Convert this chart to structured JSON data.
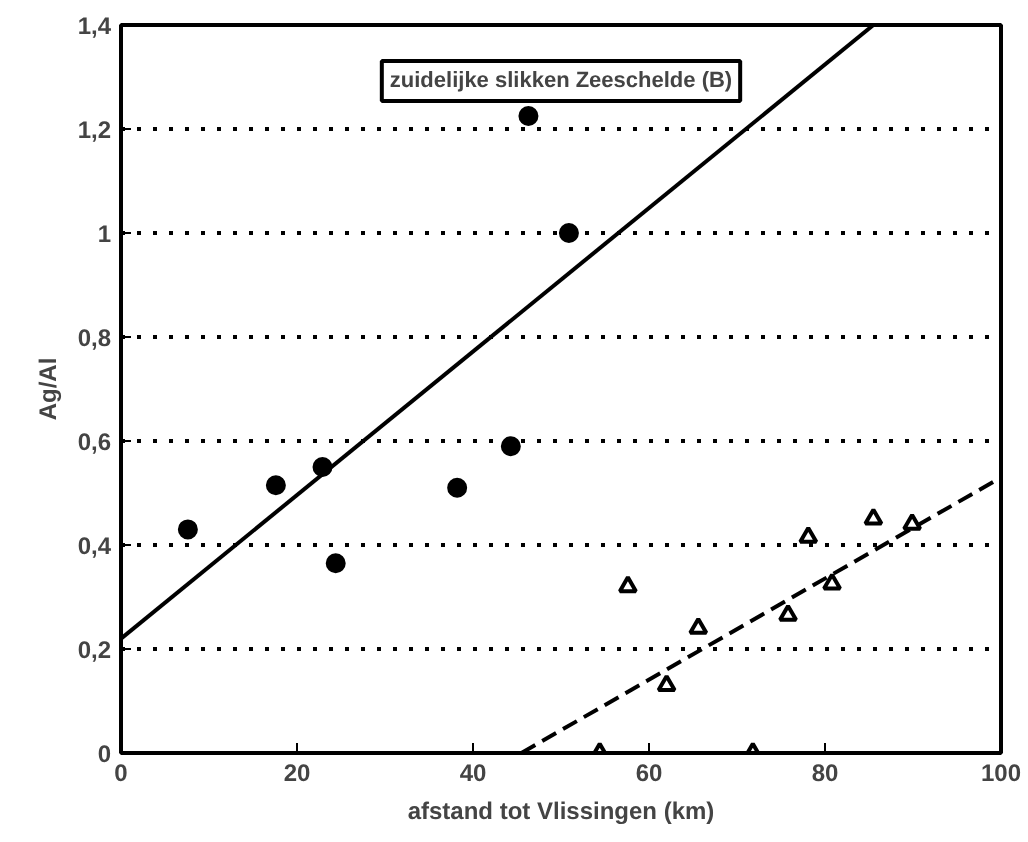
{
  "chart_data": {
    "type": "scatter",
    "xlabel": "afstand tot Vlissingen (km)",
    "ylabel": "Ag/Al",
    "annotations": [
      "zuidelijke slikken Zeeschelde (B)"
    ],
    "xlim": [
      0,
      100
    ],
    "ylim": [
      0,
      1.4
    ],
    "xticks": [
      0,
      20,
      40,
      60,
      80,
      100
    ],
    "yticks": [
      {
        "value": 0,
        "label": "0"
      },
      {
        "value": 0.2,
        "label": "0,2"
      },
      {
        "value": 0.4,
        "label": "0,4"
      },
      {
        "value": 0.6,
        "label": "0,6"
      },
      {
        "value": 0.8,
        "label": "0,8"
      },
      {
        "value": 1,
        "label": "1"
      },
      {
        "value": 1.2,
        "label": "1,2"
      },
      {
        "value": 1.4,
        "label": "1,4"
      }
    ],
    "grid": "y",
    "series": [
      {
        "marker": "circle",
        "color": "#000000",
        "x": [
          7.6,
          17.6,
          22.9,
          24.4,
          38.2,
          44.3,
          46.3,
          50.9
        ],
        "values": [
          0.43,
          0.515,
          0.55,
          0.365,
          0.51,
          0.59,
          1.225,
          1.0
        ]
      },
      {
        "marker": "triangle",
        "color": "#000000",
        "x": [
          54.4,
          57.6,
          62,
          65.6,
          71.8,
          75.8,
          78.1,
          80.8,
          85.5,
          89.9
        ],
        "values": [
          0,
          0.32,
          0.13,
          0.24,
          0,
          0.265,
          0.415,
          0.325,
          0.45,
          0.44
        ]
      },
      {
        "type": "line",
        "line_style": "solid",
        "color": "#000000",
        "x": [
          0,
          85.5
        ],
        "values": [
          0.22,
          1.4
        ]
      },
      {
        "type": "line",
        "line_style": "dashed",
        "color": "#000000",
        "x": [
          45.5,
          100
        ],
        "values": [
          0,
          0.53
        ]
      }
    ]
  }
}
